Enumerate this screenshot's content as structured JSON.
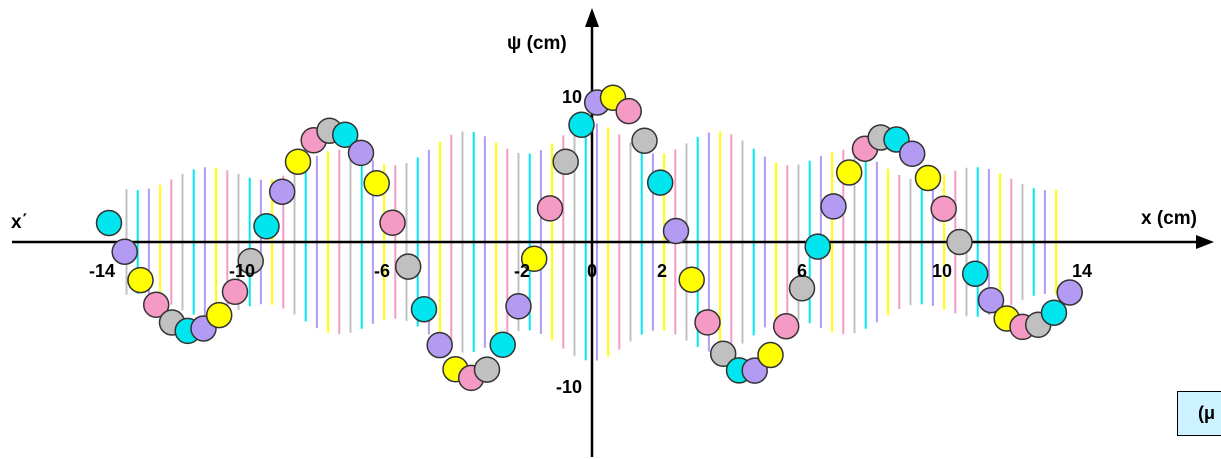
{
  "chart_data": {
    "type": "line",
    "title": "",
    "xlabel": "x (cm)",
    "xlabel_negative": "x΄",
    "ylabel": "ψ (cm)",
    "xlim": [
      -14.2,
      14.2
    ],
    "ylim": [
      -13,
      13
    ],
    "x_ticks": [
      {
        "value": -14,
        "label": "-14"
      },
      {
        "value": -10,
        "label": "-10"
      },
      {
        "value": -6,
        "label": "-6"
      },
      {
        "value": -2,
        "label": "-2"
      },
      {
        "value": 0,
        "label": "0"
      },
      {
        "value": 2,
        "label": "2"
      },
      {
        "value": 6,
        "label": "6"
      },
      {
        "value": 10,
        "label": "10"
      },
      {
        "value": 14,
        "label": "14"
      }
    ],
    "y_ticks": [
      {
        "value": 10,
        "label": "10"
      },
      {
        "value": -10,
        "label": "-10"
      }
    ],
    "wave": {
      "function": "y = A(x) * cos(2*pi*(x - 0.5)/8)",
      "amplitude_center": 10,
      "amplitude_edge": 5,
      "x_start": -13.8,
      "x_end": 13.8,
      "x_step": 0.45
    },
    "bead_colors": [
      "#00e5ee",
      "#b39af2",
      "#ffff00",
      "#f59ac4",
      "#c0c0c0"
    ],
    "background_line_colors": [
      "#c0c0c0",
      "#00e5ee",
      "#b39af2",
      "#ffff00",
      "#f59ac4"
    ],
    "grid": false,
    "legend": "none"
  },
  "corner_box": {
    "label": "(μ"
  }
}
